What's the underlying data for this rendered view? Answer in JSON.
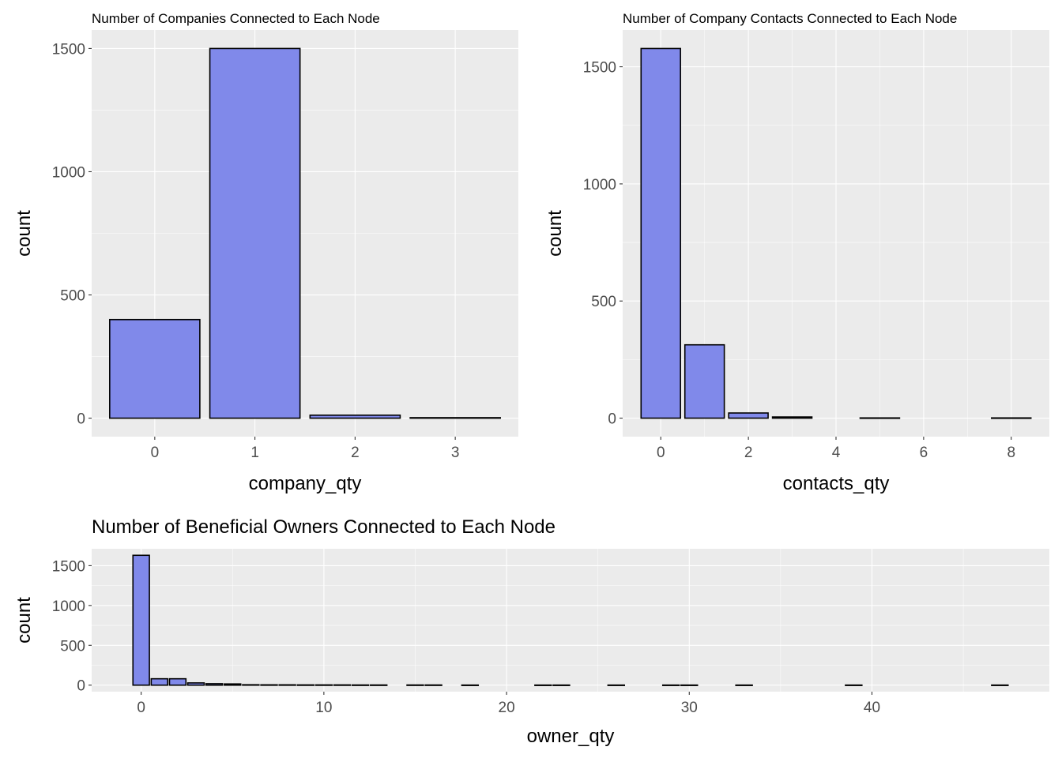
{
  "style": {
    "bar_fill": "#8089EA",
    "bar_stroke": "#000000",
    "panel_bg": "#EBEBEB",
    "grid": "#FFFFFF"
  },
  "chart_data": [
    {
      "type": "bar",
      "title": "Number of Companies Connected to Each Node",
      "xlabel": "company_qty",
      "ylabel": "count",
      "categories": [
        0,
        1,
        2,
        3
      ],
      "values": [
        400,
        1500,
        12,
        2
      ],
      "xticks": [
        "0",
        "1",
        "2",
        "3"
      ],
      "yticks": [
        "0",
        "500",
        "1000",
        "1500"
      ],
      "ylim": [
        0,
        1570
      ],
      "grid": true,
      "legend": "none"
    },
    {
      "type": "bar",
      "title": "Number of Company Contacts Connected to Each Node",
      "xlabel": "contacts_qty",
      "ylabel": "count",
      "categories": [
        0,
        1,
        2,
        3,
        5,
        8
      ],
      "values": [
        1578,
        313,
        22,
        5,
        1,
        1
      ],
      "xticks": [
        "0",
        "2",
        "4",
        "6",
        "8"
      ],
      "yticks": [
        "0",
        "500",
        "1000",
        "1500"
      ],
      "ylim": [
        0,
        1650
      ],
      "grid": true,
      "legend": "none"
    },
    {
      "type": "bar",
      "title": "Number of Beneficial Owners Connected to Each Node",
      "xlabel": "owner_qty",
      "ylabel": "count",
      "categories": [
        0,
        1,
        2,
        3,
        4,
        5,
        6,
        7,
        8,
        9,
        10,
        11,
        12,
        13,
        15,
        16,
        18,
        22,
        23,
        26,
        29,
        30,
        33,
        39,
        47
      ],
      "values": [
        1630,
        80,
        80,
        28,
        18,
        15,
        5,
        4,
        4,
        3,
        3,
        3,
        2,
        2,
        2,
        2,
        1,
        1,
        1,
        1,
        1,
        1,
        1,
        1,
        1
      ],
      "xticks": [
        "0",
        "10",
        "20",
        "30",
        "40"
      ],
      "yticks": [
        "0",
        "500",
        "1000",
        "1500"
      ],
      "ylim": [
        0,
        1720
      ],
      "grid": true,
      "legend": "none"
    }
  ]
}
